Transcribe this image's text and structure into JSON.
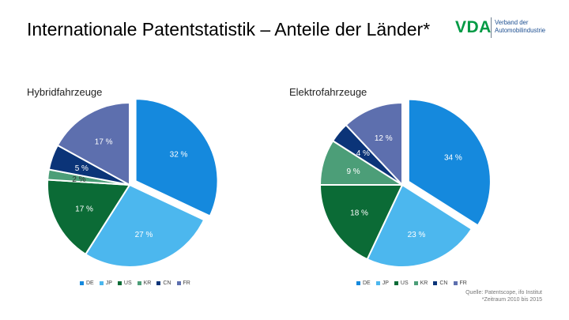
{
  "header": {
    "title": "Internationale Patentstatistik – Anteile der Länder*"
  },
  "logo": {
    "mark": "VDA",
    "org_line1": "Verband der",
    "org_line2": "Automobilindustrie",
    "colors": {
      "mark": "#009a44",
      "text": "#1d4f91"
    }
  },
  "chart_data": [
    {
      "type": "pie",
      "title": "Hybridfahrzeuge",
      "categories": [
        "DE",
        "JP",
        "US",
        "KR",
        "CN",
        "FR"
      ],
      "values": [
        32,
        27,
        17,
        2,
        5,
        17
      ],
      "data_labels": [
        "32 %",
        "27 %",
        "17 %",
        "2 %",
        "5 %",
        "17 %"
      ],
      "colors": [
        "#1589dd",
        "#4cb7ee",
        "#0b6b36",
        "#4c9e78",
        "#0b3478",
        "#5d6fae"
      ],
      "label_colors": [
        "#ffffff",
        "#ffffff",
        "#ffffff",
        "#333333",
        "#ffffff",
        "#ffffff"
      ],
      "exploded": [
        "DE"
      ],
      "legend": "bottom"
    },
    {
      "type": "pie",
      "title": "Elektrofahrzeuge",
      "categories": [
        "DE",
        "JP",
        "US",
        "KR",
        "CN",
        "FR"
      ],
      "values": [
        34,
        23,
        18,
        9,
        4,
        12
      ],
      "data_labels": [
        "34 %",
        "23 %",
        "18 %",
        "9 %",
        "4 %",
        "12 %"
      ],
      "colors": [
        "#1589dd",
        "#4cb7ee",
        "#0b6b36",
        "#4c9e78",
        "#0b3478",
        "#5d6fae"
      ],
      "label_colors": [
        "#ffffff",
        "#ffffff",
        "#ffffff",
        "#ffffff",
        "#ffffff",
        "#ffffff"
      ],
      "exploded": [
        "DE"
      ],
      "legend": "bottom"
    }
  ],
  "footer": {
    "source": "Quelle:  Patentscope, ifo Institut",
    "period": "*Zeitraum 2010 bis 2015"
  }
}
